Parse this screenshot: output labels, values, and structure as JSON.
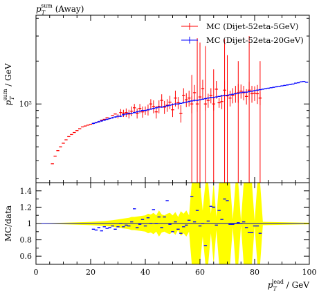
{
  "chart_data": [
    {
      "type": "scatter",
      "title": "p_T^sum (Away)",
      "title_parts": {
        "main": "p",
        "sub": "T",
        "sup": "sum",
        "suffix": " (Away)"
      },
      "ylabel_parts": {
        "main": "p",
        "sub": "T",
        "sup": "sum",
        "suffix": " / GeV"
      },
      "yscale": "log",
      "ylim": [
        28,
        420
      ],
      "xlim": [
        0,
        100
      ],
      "y_tick_labels": [
        {
          "value": 100,
          "label": "10²"
        }
      ],
      "legend_position": "top-right",
      "series": [
        {
          "name": "MC (Dijet-52eta-5GeV)",
          "color": "#ff0000",
          "x": [
            6,
            7,
            8,
            9,
            10,
            11,
            12,
            13,
            14,
            15,
            16,
            17,
            18,
            19,
            20,
            21,
            22,
            23,
            24,
            25,
            26,
            27,
            28,
            29,
            30,
            31,
            32,
            33,
            34,
            35,
            36,
            37,
            38,
            39,
            40,
            41,
            42,
            43,
            44,
            45,
            46,
            47,
            48,
            49,
            50,
            51,
            52,
            53,
            54,
            55,
            56,
            57,
            58,
            59,
            60,
            61,
            62,
            63,
            64,
            65,
            66,
            67,
            68,
            69,
            70,
            71,
            72,
            73,
            74,
            75,
            76,
            77,
            78,
            79,
            80,
            81,
            82
          ],
          "y": [
            38,
            43,
            47,
            50,
            53,
            56,
            59,
            61,
            63,
            65,
            67,
            69,
            70,
            71,
            72,
            73,
            74,
            75,
            77,
            78,
            80,
            79,
            83,
            85,
            82,
            87,
            86,
            87,
            85,
            89,
            94,
            86,
            93,
            88,
            90,
            91,
            100,
            96,
            88,
            96,
            106,
            95,
            98,
            103,
            91,
            110,
            102,
            86,
            115,
            107,
            110,
            100,
            120,
            100,
            112,
            128,
            100,
            106,
            115,
            100,
            127,
            102,
            104,
            125,
            114,
            110,
            115,
            118,
            120,
            123,
            120,
            113,
            125,
            118,
            119,
            118,
            110
          ],
          "err": [
            0,
            0,
            0,
            0,
            0,
            0,
            0,
            0,
            0,
            0,
            0,
            0,
            0,
            0,
            0,
            0,
            0,
            0,
            0,
            0,
            0,
            0,
            0,
            0,
            3,
            5,
            5,
            6,
            6,
            7,
            6,
            7,
            7,
            8,
            6,
            8,
            8,
            10,
            9,
            10,
            11,
            10,
            10,
            11,
            10,
            14,
            10,
            12,
            14,
            12,
            14,
            14,
            16,
            12,
            14,
            20,
            10,
            12,
            14,
            10,
            18,
            8,
            12,
            20,
            16,
            14,
            14,
            16,
            18,
            14,
            14,
            14,
            18,
            16,
            14,
            18,
            12
          ],
          "big_err": [
            {
              "x": 57,
              "lo": 28,
              "hi": 160
            },
            {
              "x": 59,
              "lo": 28,
              "hi": 290
            },
            {
              "x": 60,
              "lo": 28,
              "hi": 270
            },
            {
              "x": 62,
              "lo": 28,
              "hi": 255
            },
            {
              "x": 65,
              "lo": 28,
              "hi": 175
            },
            {
              "x": 69,
              "lo": 28,
              "hi": 285
            },
            {
              "x": 70,
              "lo": 28,
              "hi": 220
            },
            {
              "x": 74,
              "lo": 28,
              "hi": 200
            },
            {
              "x": 78,
              "lo": 28,
              "hi": 300
            },
            {
              "x": 82,
              "lo": 28,
              "hi": 200
            }
          ]
        },
        {
          "name": "MC (Dijet-52eta-20GeV)",
          "color": "#0000ff",
          "x": [
            21,
            22,
            23,
            24,
            25,
            26,
            27,
            28,
            29,
            30,
            31,
            32,
            33,
            34,
            35,
            36,
            37,
            38,
            39,
            40,
            41,
            42,
            43,
            44,
            45,
            46,
            47,
            48,
            49,
            50,
            51,
            52,
            53,
            54,
            55,
            56,
            57,
            58,
            59,
            60,
            61,
            62,
            63,
            64,
            65,
            66,
            67,
            68,
            69,
            70,
            71,
            72,
            73,
            74,
            75,
            76,
            77,
            78,
            79,
            80,
            81,
            82,
            83,
            84,
            85,
            86,
            87,
            88,
            89,
            90,
            91,
            92,
            93,
            94,
            95,
            96,
            97,
            98,
            99
          ],
          "y": [
            73,
            74,
            75,
            76,
            77,
            78,
            79,
            80,
            81,
            82,
            82,
            84,
            85,
            86,
            86,
            87,
            88,
            89,
            90,
            90,
            91,
            92,
            93,
            94,
            95,
            95,
            96,
            97,
            98,
            99,
            100,
            100,
            101,
            102,
            103,
            104,
            105,
            106,
            106,
            107,
            108,
            109,
            110,
            111,
            111,
            112,
            113,
            114,
            115,
            115,
            116,
            117,
            118,
            119,
            120,
            121,
            121,
            122,
            123,
            124,
            125,
            126,
            127,
            128,
            129,
            130,
            131,
            132,
            133,
            134,
            135,
            136,
            137,
            138,
            140,
            141,
            143,
            144,
            142
          ],
          "err": [
            1,
            1,
            1,
            1,
            1,
            1,
            1,
            1,
            1,
            1,
            1,
            1,
            1,
            1,
            1,
            1,
            1,
            1,
            1,
            1,
            1,
            1,
            1,
            1,
            1,
            1,
            1,
            1,
            1,
            1,
            1,
            1,
            1,
            1,
            1,
            1,
            1,
            1,
            1,
            1,
            1,
            1,
            1,
            1,
            1,
            1,
            1,
            1,
            1,
            1,
            1,
            1,
            1,
            1,
            1,
            1,
            1,
            1,
            1,
            1,
            1,
            1,
            1,
            1,
            1,
            1,
            1,
            1,
            1,
            1,
            1,
            1,
            1,
            1,
            1,
            1,
            1,
            1,
            1
          ]
        }
      ]
    },
    {
      "type": "scatter",
      "ylabel": "MC/data",
      "xlim": [
        0,
        100
      ],
      "ylim": [
        0.5,
        1.5
      ],
      "x_ticks": [
        0,
        20,
        40,
        60,
        80,
        100
      ],
      "y_ticks": [
        0.6,
        0.8,
        1,
        1.2,
        1.4
      ],
      "xlabel_parts": {
        "main": "p",
        "sub": "T",
        "sup": "lead",
        "suffix": " / GeV"
      },
      "reference_line": 1,
      "band_color": "#ffff00",
      "band": {
        "x": [
          0,
          5,
          10,
          15,
          20,
          25,
          28,
          30,
          32,
          34,
          35,
          36,
          38,
          40,
          41,
          42,
          43,
          44,
          45,
          46,
          47,
          48,
          49,
          50,
          51,
          52,
          53,
          54,
          55,
          56,
          57,
          58,
          59,
          60,
          61,
          62,
          63,
          64,
          65,
          66,
          67,
          68,
          69,
          70,
          71,
          72,
          73,
          74,
          75,
          76,
          77,
          78,
          79,
          80,
          81,
          82,
          83,
          100
        ],
        "lo": [
          0.997,
          0.995,
          0.99,
          0.985,
          0.98,
          0.97,
          0.96,
          0.95,
          0.94,
          0.93,
          0.92,
          0.92,
          0.91,
          0.9,
          0.88,
          0.89,
          0.87,
          0.9,
          0.84,
          0.89,
          0.9,
          0.88,
          0.87,
          0.9,
          0.86,
          0.92,
          0.85,
          0.88,
          0.84,
          0.9,
          0.5,
          0.5,
          0.5,
          0.5,
          0.84,
          0.5,
          0.5,
          0.88,
          0.5,
          0.92,
          0.5,
          0.5,
          0.5,
          0.5,
          0.5,
          0.95,
          0.5,
          0.5,
          0.97,
          0.5,
          0.5,
          0.5,
          0.5,
          0.97,
          0.5,
          0.5,
          0.98,
          0.99
        ],
        "hi": [
          1.003,
          1.005,
          1.01,
          1.015,
          1.02,
          1.03,
          1.04,
          1.05,
          1.06,
          1.07,
          1.08,
          1.08,
          1.09,
          1.1,
          1.12,
          1.11,
          1.13,
          1.1,
          1.16,
          1.11,
          1.1,
          1.12,
          1.13,
          1.1,
          1.14,
          1.08,
          1.15,
          1.12,
          1.16,
          1.1,
          1.5,
          1.5,
          1.5,
          1.5,
          1.16,
          1.5,
          1.5,
          1.12,
          1.5,
          1.08,
          1.5,
          1.5,
          1.5,
          1.5,
          1.5,
          1.05,
          1.5,
          1.5,
          1.03,
          1.5,
          1.5,
          1.5,
          1.5,
          1.03,
          1.5,
          1.5,
          1.02,
          1.01
        ]
      },
      "series": [
        {
          "name": "MC (Dijet-52eta-20GeV)",
          "color": "#0000ff",
          "x": [
            21,
            22,
            23,
            24,
            25,
            26,
            27,
            28,
            29,
            30,
            31,
            32,
            33,
            34,
            35,
            36,
            37,
            38,
            39,
            40,
            41,
            42,
            43,
            44,
            45,
            46,
            47,
            48,
            49,
            50,
            51,
            52,
            53,
            54,
            55,
            56,
            57,
            58,
            59,
            60,
            61,
            62,
            63,
            64,
            65,
            66,
            67,
            68,
            69,
            70,
            71,
            72,
            73,
            74,
            75,
            76,
            77,
            78,
            79,
            80,
            81,
            82
          ],
          "y": [
            0.93,
            0.92,
            0.95,
            0.91,
            0.96,
            0.94,
            0.95,
            0.97,
            0.93,
            0.96,
            1.0,
            0.96,
            0.98,
            0.97,
            1.02,
            1.18,
            0.95,
            0.99,
            1.05,
            0.97,
            1.07,
            1.0,
            1.17,
            1.0,
            1.08,
            0.95,
            1.08,
            1.28,
            0.99,
            0.9,
            1.02,
            0.93,
            0.88,
            0.96,
            0.98,
            1.04,
            1.33,
            1.02,
            1.16,
            0.97,
            1.0,
            0.73,
            1.03,
            1.21,
            1.2,
            0.98,
            1.16,
            1.05,
            1.3,
            1.28,
            0.99,
            0.99,
            1.0,
            1.01,
            1.0,
            1.02,
            0.95,
            0.89,
            0.89,
            0.97,
            0.97,
            0.88
          ]
        }
      ]
    }
  ],
  "legend": {
    "items": [
      {
        "label": "MC (Dijet-52eta-5GeV)",
        "color": "#ff0000"
      },
      {
        "label": "MC (Dijet-52eta-20GeV)",
        "color": "#0000ff"
      }
    ]
  }
}
